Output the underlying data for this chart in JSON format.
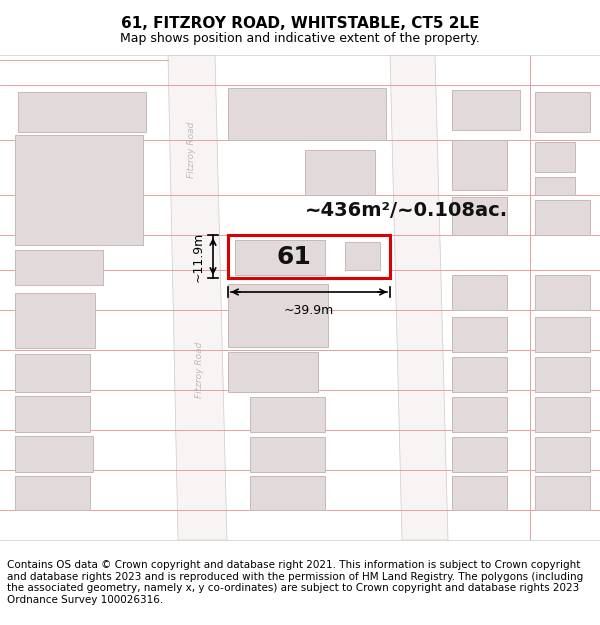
{
  "title": "61, FITZROY ROAD, WHITSTABLE, CT5 2LE",
  "subtitle": "Map shows position and indicative extent of the property.",
  "footer": "Contains OS data © Crown copyright and database right 2021. This information is subject to Crown copyright and database rights 2023 and is reproduced with the permission of HM Land Registry. The polygons (including the associated geometry, namely x, y co-ordinates) are subject to Crown copyright and database rights 2023 Ordnance Survey 100026316.",
  "area_label": "~436m²/~0.108ac.",
  "width_label": "~39.9m",
  "height_label": "~11.9m",
  "property_number": "61",
  "bg_color": "#ffffff",
  "map_bg": "#f7f2f2",
  "road_color": "#f0eded",
  "block_fill": "#e2dada",
  "block_edge": "#c8b8b8",
  "highlight_fill": "#ffffff",
  "highlight_edge": "#dd0000",
  "pink_line": "#e8a0a0",
  "road_label_color": "#c0b8b8",
  "title_fontsize": 11,
  "subtitle_fontsize": 9,
  "footer_fontsize": 7.5,
  "area_fontsize": 14,
  "num_fontsize": 18,
  "dim_fontsize": 9
}
